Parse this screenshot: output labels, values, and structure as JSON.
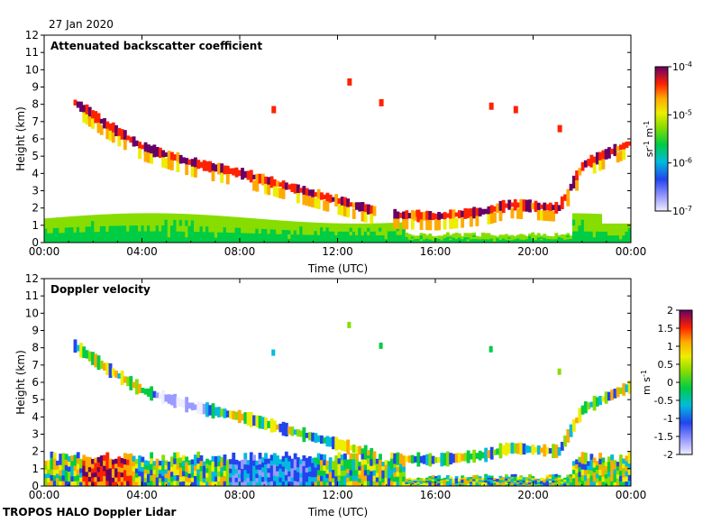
{
  "date_label": "27 Jan 2020",
  "footer_label": "TROPOS HALO Doppler Lidar",
  "chart_data": [
    {
      "type": "heatmap",
      "title": "Attenuated backscatter coefficient",
      "xlabel": "Time (UTC)",
      "ylabel": "Height (km)",
      "x_ticks": [
        "00:00",
        "04:00",
        "08:00",
        "12:00",
        "16:00",
        "20:00",
        "00:00"
      ],
      "xlim_hours": [
        0,
        24
      ],
      "y_ticks": [
        0,
        1,
        2,
        3,
        4,
        5,
        6,
        7,
        8,
        9,
        10,
        11,
        12
      ],
      "ylim_km": [
        0,
        12
      ],
      "colorbar": {
        "scale": "log",
        "ticks": [
          "10^-7",
          "10^-6",
          "10^-5",
          "10^-4"
        ],
        "unit": "sr^-1 m^-1",
        "range": [
          1e-07,
          0.0001
        ]
      },
      "layers": [
        {
          "name": "boundary layer aerosol",
          "start_h": 0,
          "end_h": 24,
          "top_km": 1.6,
          "approx_value": "2e-6"
        },
        {
          "name": "cloud layer",
          "points_h_km": [
            [
              1.2,
              8.1
            ],
            [
              2.5,
              6.8
            ],
            [
              4,
              5.5
            ],
            [
              6,
              4.6
            ],
            [
              8,
              4.0
            ],
            [
              10,
              3.2
            ],
            [
              12,
              2.4
            ],
            [
              14,
              1.6
            ],
            [
              16,
              1.5
            ],
            [
              18,
              1.8
            ],
            [
              19,
              2.2
            ],
            [
              21,
              2.0
            ],
            [
              22,
              4.5
            ],
            [
              23.5,
              5.5
            ],
            [
              24,
              5.8
            ]
          ],
          "approx_value": "1e-5"
        }
      ]
    },
    {
      "type": "heatmap",
      "title": "Doppler velocity",
      "xlabel": "Time (UTC)",
      "ylabel": "Height (km)",
      "x_ticks": [
        "00:00",
        "04:00",
        "08:00",
        "12:00",
        "16:00",
        "20:00",
        "00:00"
      ],
      "xlim_hours": [
        0,
        24
      ],
      "y_ticks": [
        0,
        1,
        2,
        3,
        4,
        5,
        6,
        7,
        8,
        9,
        10,
        11,
        12
      ],
      "ylim_km": [
        0,
        12
      ],
      "colorbar": {
        "scale": "linear",
        "ticks": [
          "2",
          "1.5",
          "1",
          "0.5",
          "0",
          "-0.5",
          "-1",
          "-1.5",
          "-2"
        ],
        "unit": "m s^-1",
        "range": [
          -2,
          2
        ]
      }
    }
  ]
}
